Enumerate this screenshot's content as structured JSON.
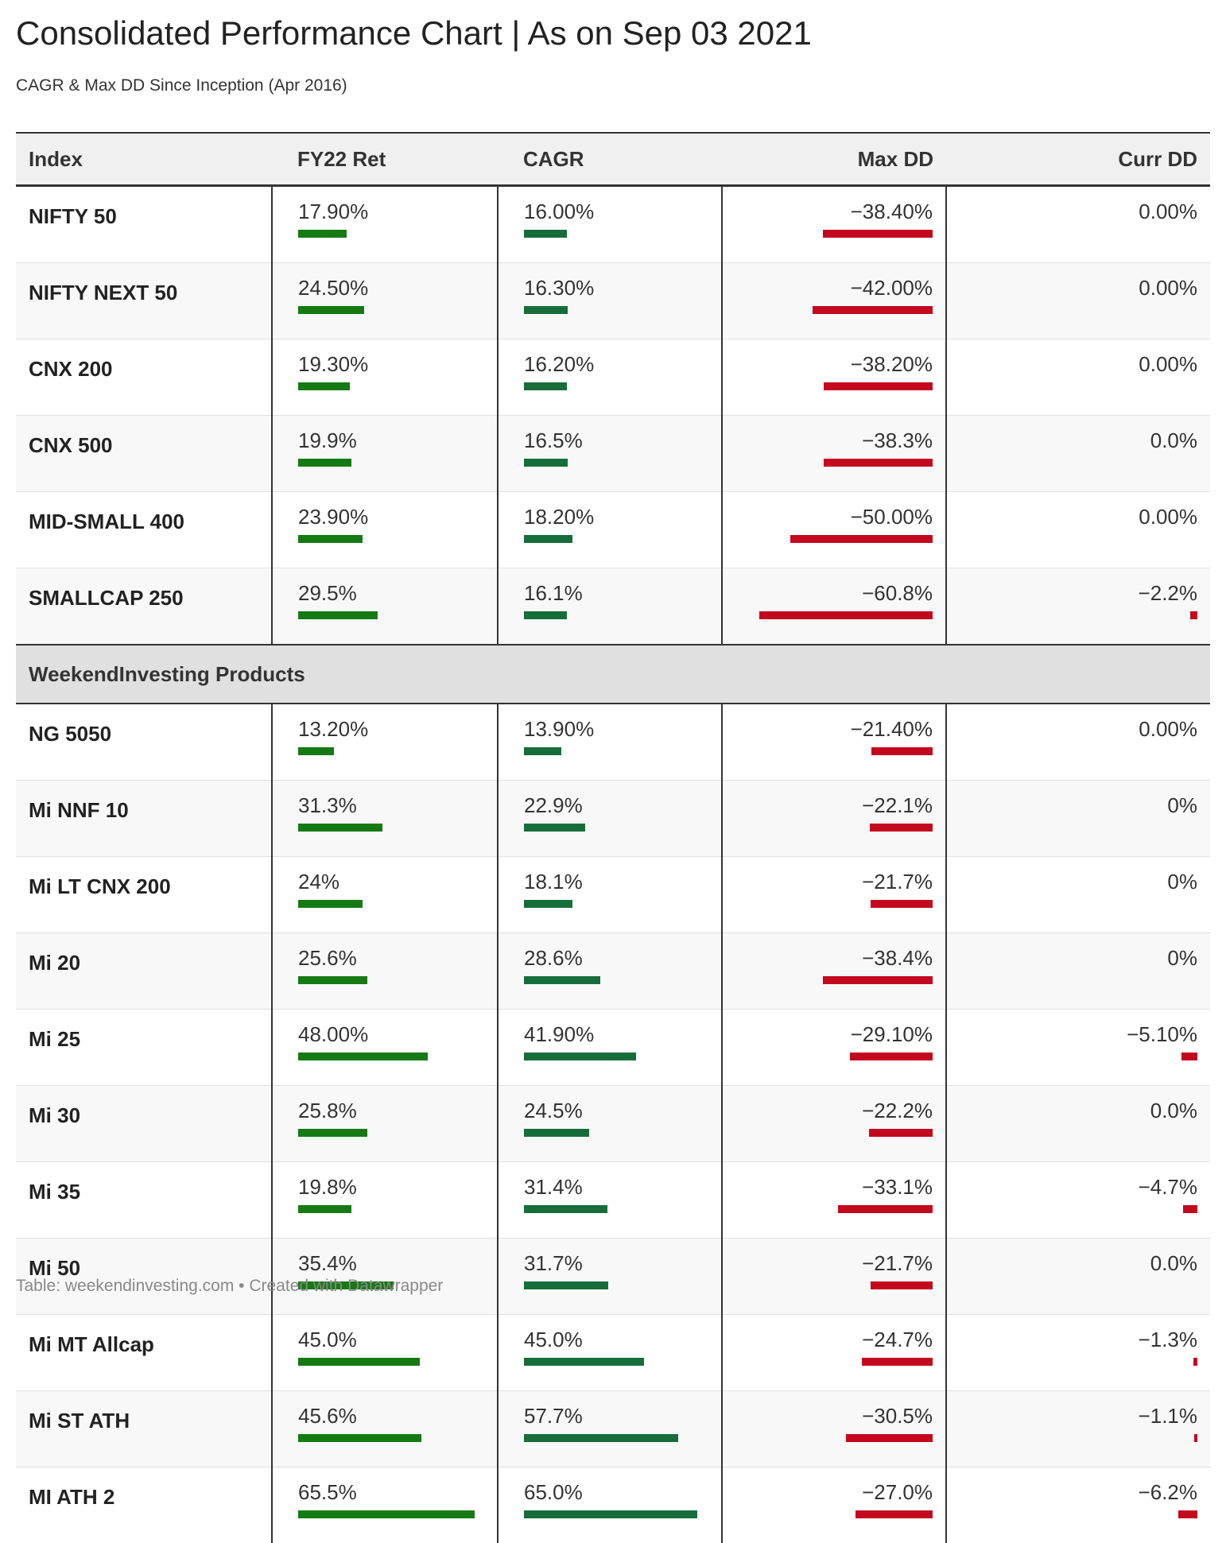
{
  "header": {
    "title": "Consolidated Performance Chart | As on Sep 03 2021",
    "subtitle": "CAGR & Max DD Since Inception (Apr 2016)"
  },
  "footer": {
    "text": "Table: weekendinvesting.com • Created with Datawrapper"
  },
  "colors": {
    "fy22": "#157a13",
    "cagr": "#176d3a",
    "negative": "#c4091e"
  },
  "chart_data": {
    "type": "table",
    "title": "Consolidated Performance Chart | As on Sep 03 2021",
    "subtitle": "CAGR & Max DD Since Inception (Apr 2016)",
    "columns": [
      "Index",
      "FY22 Ret",
      "CAGR",
      "Max DD",
      "Curr DD"
    ],
    "bar_scale": {
      "fy22_max": 65.5,
      "cagr_max": 65.0,
      "maxdd_max": 60.8,
      "currdd_max": 6.2
    },
    "groups": [
      {
        "name": "",
        "rows": [
          {
            "index": "NIFTY 50",
            "fy22": "17.90%",
            "fy22_v": 17.9,
            "cagr": "16.00%",
            "cagr_v": 16.0,
            "maxdd": "−38.40%",
            "maxdd_v": -38.4,
            "currdd": "0.00%",
            "currdd_v": 0
          },
          {
            "index": "NIFTY NEXT 50",
            "fy22": "24.50%",
            "fy22_v": 24.5,
            "cagr": "16.30%",
            "cagr_v": 16.3,
            "maxdd": "−42.00%",
            "maxdd_v": -42.0,
            "currdd": "0.00%",
            "currdd_v": 0
          },
          {
            "index": "CNX 200",
            "fy22": "19.30%",
            "fy22_v": 19.3,
            "cagr": "16.20%",
            "cagr_v": 16.2,
            "maxdd": "−38.20%",
            "maxdd_v": -38.2,
            "currdd": "0.00%",
            "currdd_v": 0
          },
          {
            "index": "CNX 500",
            "fy22": "19.9%",
            "fy22_v": 19.9,
            "cagr": "16.5%",
            "cagr_v": 16.5,
            "maxdd": "−38.3%",
            "maxdd_v": -38.3,
            "currdd": "0.0%",
            "currdd_v": 0
          },
          {
            "index": "MID-SMALL 400",
            "fy22": "23.90%",
            "fy22_v": 23.9,
            "cagr": "18.20%",
            "cagr_v": 18.2,
            "maxdd": "−50.00%",
            "maxdd_v": -50.0,
            "currdd": "0.00%",
            "currdd_v": 0
          },
          {
            "index": "SMALLCAP 250",
            "fy22": "29.5%",
            "fy22_v": 29.5,
            "cagr": "16.1%",
            "cagr_v": 16.1,
            "maxdd": "−60.8%",
            "maxdd_v": -60.8,
            "currdd": "−2.2%",
            "currdd_v": -2.2
          }
        ]
      },
      {
        "name": "WeekendInvesting Products",
        "rows": [
          {
            "index": "NG 5050",
            "fy22": "13.20%",
            "fy22_v": 13.2,
            "cagr": "13.90%",
            "cagr_v": 13.9,
            "maxdd": "−21.40%",
            "maxdd_v": -21.4,
            "currdd": "0.00%",
            "currdd_v": 0
          },
          {
            "index": "Mi NNF 10",
            "fy22": "31.3%",
            "fy22_v": 31.3,
            "cagr": "22.9%",
            "cagr_v": 22.9,
            "maxdd": "−22.1%",
            "maxdd_v": -22.1,
            "currdd": "0%",
            "currdd_v": 0
          },
          {
            "index": "Mi LT CNX 200",
            "fy22": "24%",
            "fy22_v": 24,
            "cagr": "18.1%",
            "cagr_v": 18.1,
            "maxdd": "−21.7%",
            "maxdd_v": -21.7,
            "currdd": "0%",
            "currdd_v": 0
          },
          {
            "index": "Mi 20",
            "fy22": "25.6%",
            "fy22_v": 25.6,
            "cagr": "28.6%",
            "cagr_v": 28.6,
            "maxdd": "−38.4%",
            "maxdd_v": -38.4,
            "currdd": "0%",
            "currdd_v": 0
          },
          {
            "index": "Mi 25",
            "fy22": "48.00%",
            "fy22_v": 48.0,
            "cagr": "41.90%",
            "cagr_v": 41.9,
            "maxdd": "−29.10%",
            "maxdd_v": -29.1,
            "currdd": "−5.10%",
            "currdd_v": -5.1
          },
          {
            "index": "Mi 30",
            "fy22": "25.8%",
            "fy22_v": 25.8,
            "cagr": "24.5%",
            "cagr_v": 24.5,
            "maxdd": "−22.2%",
            "maxdd_v": -22.2,
            "currdd": "0.0%",
            "currdd_v": 0
          },
          {
            "index": "Mi 35",
            "fy22": "19.8%",
            "fy22_v": 19.8,
            "cagr": "31.4%",
            "cagr_v": 31.4,
            "maxdd": "−33.1%",
            "maxdd_v": -33.1,
            "currdd": "−4.7%",
            "currdd_v": -4.7
          },
          {
            "index": "Mi 50",
            "fy22": "35.4%",
            "fy22_v": 35.4,
            "cagr": "31.7%",
            "cagr_v": 31.7,
            "maxdd": "−21.7%",
            "maxdd_v": -21.7,
            "currdd": "0.0%",
            "currdd_v": 0
          },
          {
            "index": "Mi MT Allcap",
            "fy22": "45.0%",
            "fy22_v": 45.0,
            "cagr": "45.0%",
            "cagr_v": 45.0,
            "maxdd": "−24.7%",
            "maxdd_v": -24.7,
            "currdd": "−1.3%",
            "currdd_v": -1.3
          },
          {
            "index": "Mi ST ATH",
            "fy22": "45.6%",
            "fy22_v": 45.6,
            "cagr": "57.7%",
            "cagr_v": 57.7,
            "maxdd": "−30.5%",
            "maxdd_v": -30.5,
            "currdd": "−1.1%",
            "currdd_v": -1.1
          },
          {
            "index": "MI ATH 2",
            "fy22": "65.5%",
            "fy22_v": 65.5,
            "cagr": "65.0%",
            "cagr_v": 65.0,
            "maxdd": "−27.0%",
            "maxdd_v": -27.0,
            "currdd": "−6.2%",
            "currdd_v": -6.2
          }
        ]
      }
    ]
  }
}
